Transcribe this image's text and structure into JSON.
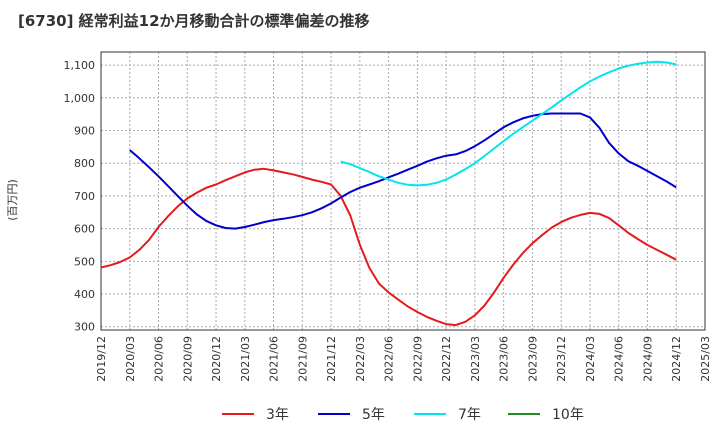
{
  "chart_data": {
    "type": "line",
    "title": "[6730]  経常利益12か月移動合計の標準偏差の推移",
    "ylabel": "(百万円)",
    "xlabel": "",
    "ylim": [
      290,
      1140
    ],
    "yticks": [
      300,
      400,
      500,
      600,
      700,
      800,
      900,
      1000,
      1100
    ],
    "ytick_labels": [
      "300",
      "400",
      "500",
      "600",
      "700",
      "800",
      "900",
      "1,000",
      "1,100"
    ],
    "xticks": [
      "2019/12",
      "2020/03",
      "2020/06",
      "2020/09",
      "2020/12",
      "2021/03",
      "2021/06",
      "2021/09",
      "2021/12",
      "2022/03",
      "2022/06",
      "2022/09",
      "2022/12",
      "2023/03",
      "2023/06",
      "2023/09",
      "2023/12",
      "2024/03",
      "2024/06",
      "2024/09",
      "2024/12",
      "2025/03"
    ],
    "grid": true,
    "legend_position": "bottom",
    "series": [
      {
        "name": "3年",
        "color": "#e41a1c",
        "x": [
          "2019/12",
          "2020/01",
          "2020/02",
          "2020/03",
          "2020/04",
          "2020/05",
          "2020/06",
          "2020/07",
          "2020/08",
          "2020/09",
          "2020/10",
          "2020/11",
          "2020/12",
          "2021/01",
          "2021/02",
          "2021/03",
          "2021/04",
          "2021/05",
          "2021/06",
          "2021/07",
          "2021/08",
          "2021/09",
          "2021/10",
          "2021/11",
          "2021/12",
          "2022/01",
          "2022/02",
          "2022/03",
          "2022/04",
          "2022/05",
          "2022/06",
          "2022/07",
          "2022/08",
          "2022/09",
          "2022/10",
          "2022/11",
          "2022/12",
          "2023/01",
          "2023/02",
          "2023/03",
          "2023/04",
          "2023/05",
          "2023/06",
          "2023/07",
          "2023/08",
          "2023/09",
          "2023/10",
          "2023/11",
          "2023/12",
          "2024/01",
          "2024/02",
          "2024/03",
          "2024/04",
          "2024/05",
          "2024/06",
          "2024/07",
          "2024/08",
          "2024/09",
          "2024/10",
          "2024/11",
          "2024/12"
        ],
        "values": [
          481,
          488,
          498,
          512,
          535,
          565,
          605,
          638,
          668,
          692,
          710,
          725,
          735,
          748,
          760,
          772,
          780,
          783,
          778,
          772,
          766,
          758,
          750,
          743,
          735,
          700,
          640,
          550,
          480,
          432,
          405,
          383,
          362,
          345,
          330,
          318,
          308,
          305,
          315,
          335,
          365,
          405,
          450,
          490,
          525,
          555,
          580,
          603,
          620,
          633,
          642,
          648,
          645,
          632,
          610,
          587,
          568,
          550,
          535,
          520,
          505
        ]
      },
      {
        "name": "5年",
        "color": "#0000cd",
        "x": [
          "2020/03",
          "2020/04",
          "2020/05",
          "2020/06",
          "2020/07",
          "2020/08",
          "2020/09",
          "2020/10",
          "2020/11",
          "2020/12",
          "2021/01",
          "2021/02",
          "2021/03",
          "2021/04",
          "2021/05",
          "2021/06",
          "2021/07",
          "2021/08",
          "2021/09",
          "2021/10",
          "2021/11",
          "2021/12",
          "2022/01",
          "2022/02",
          "2022/03",
          "2022/04",
          "2022/05",
          "2022/06",
          "2022/07",
          "2022/08",
          "2022/09",
          "2022/10",
          "2022/11",
          "2022/12",
          "2023/01",
          "2023/02",
          "2023/03",
          "2023/04",
          "2023/05",
          "2023/06",
          "2023/07",
          "2023/08",
          "2023/09",
          "2023/10",
          "2023/11",
          "2023/12",
          "2024/01",
          "2024/02",
          "2024/03",
          "2024/04",
          "2024/05",
          "2024/06",
          "2024/07",
          "2024/08",
          "2024/09",
          "2024/10",
          "2024/11",
          "2024/12"
        ],
        "values": [
          840,
          815,
          788,
          760,
          730,
          700,
          670,
          643,
          623,
          610,
          602,
          600,
          605,
          612,
          620,
          626,
          630,
          635,
          641,
          650,
          662,
          677,
          695,
          712,
          725,
          735,
          745,
          757,
          768,
          780,
          792,
          805,
          815,
          823,
          827,
          837,
          852,
          870,
          890,
          910,
          925,
          937,
          945,
          950,
          952,
          952,
          952,
          952,
          940,
          908,
          862,
          830,
          806,
          792,
          776,
          760,
          744,
          726
        ]
      },
      {
        "name": "7年",
        "color": "#00e5ee",
        "x": [
          "2022/01",
          "2022/02",
          "2022/03",
          "2022/04",
          "2022/05",
          "2022/06",
          "2022/07",
          "2022/08",
          "2022/09",
          "2022/10",
          "2022/11",
          "2022/12",
          "2023/01",
          "2023/02",
          "2023/03",
          "2023/04",
          "2023/05",
          "2023/06",
          "2023/07",
          "2023/08",
          "2023/09",
          "2023/10",
          "2023/11",
          "2023/12",
          "2024/01",
          "2024/02",
          "2024/03",
          "2024/04",
          "2024/05",
          "2024/06",
          "2024/07",
          "2024/08",
          "2024/09",
          "2024/10",
          "2024/11",
          "2024/12"
        ],
        "values": [
          805,
          797,
          785,
          773,
          760,
          750,
          740,
          734,
          732,
          734,
          740,
          750,
          765,
          782,
          800,
          822,
          845,
          868,
          890,
          910,
          930,
          950,
          970,
          992,
          1012,
          1032,
          1050,
          1065,
          1078,
          1090,
          1098,
          1104,
          1108,
          1110,
          1108,
          1102
        ]
      },
      {
        "name": "10年",
        "color": "#228b22",
        "x": [],
        "values": []
      }
    ]
  }
}
